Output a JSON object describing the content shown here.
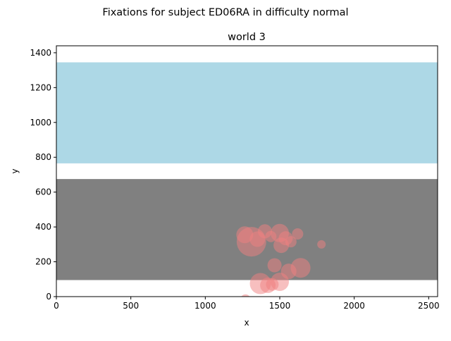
{
  "chart_data": {
    "type": "scatter",
    "suptitle": "Fixations for subject ED06RA in difficulty normal",
    "title": "world 3",
    "xlabel": "x",
    "ylabel": "y",
    "xlim": [
      0,
      2560
    ],
    "ylim": [
      0,
      1440
    ],
    "xticks": [
      0,
      500,
      1000,
      1500,
      2000,
      2500
    ],
    "yticks": [
      0,
      200,
      400,
      600,
      800,
      1000,
      1200,
      1400
    ],
    "grid": false,
    "legend": "none",
    "regions": [
      {
        "x0": 0,
        "x1": 2560,
        "y0": 765,
        "y1": 1345,
        "color": "#add8e6"
      },
      {
        "x0": 0,
        "x1": 2560,
        "y0": 95,
        "y1": 675,
        "color": "#808080"
      }
    ],
    "series": [
      {
        "marker_color": "#f08080",
        "alpha": 0.5,
        "points": [
          {
            "x": 1310,
            "y": 315,
            "size": 42
          },
          {
            "x": 1265,
            "y": 355,
            "size": 24
          },
          {
            "x": 1350,
            "y": 330,
            "size": 22
          },
          {
            "x": 1400,
            "y": 375,
            "size": 20
          },
          {
            "x": 1440,
            "y": 345,
            "size": 16
          },
          {
            "x": 1500,
            "y": 365,
            "size": 26
          },
          {
            "x": 1540,
            "y": 335,
            "size": 20
          },
          {
            "x": 1510,
            "y": 295,
            "size": 22
          },
          {
            "x": 1575,
            "y": 315,
            "size": 16
          },
          {
            "x": 1620,
            "y": 360,
            "size": 16
          },
          {
            "x": 1780,
            "y": 300,
            "size": 12
          },
          {
            "x": 1465,
            "y": 180,
            "size": 20
          },
          {
            "x": 1560,
            "y": 145,
            "size": 22
          },
          {
            "x": 1640,
            "y": 165,
            "size": 28
          },
          {
            "x": 1370,
            "y": 75,
            "size": 30
          },
          {
            "x": 1420,
            "y": 65,
            "size": 22
          },
          {
            "x": 1500,
            "y": 85,
            "size": 26
          },
          {
            "x": 1450,
            "y": 70,
            "size": 18
          },
          {
            "x": 1270,
            "y": -15,
            "size": 14
          }
        ]
      }
    ]
  }
}
